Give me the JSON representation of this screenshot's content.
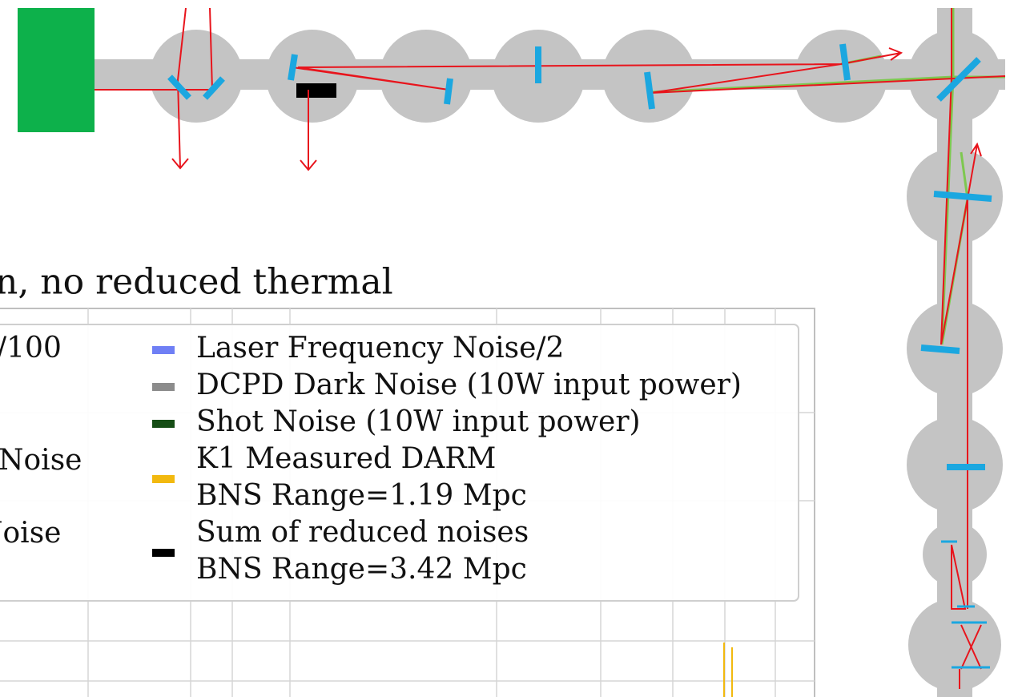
{
  "plot": {
    "title": "n, no reduced thermal",
    "left_legend": [
      "/100",
      "Noise",
      "Noise"
    ],
    "legend": [
      {
        "lines": [
          "Laser Frequency Noise/2"
        ],
        "color": "#6f7ff5"
      },
      {
        "lines": [
          "DCPD Dark Noise (10W input power)"
        ],
        "color": "#8c8c8c"
      },
      {
        "lines": [
          "Shot Noise (10W input power)"
        ],
        "color": "#154d15"
      },
      {
        "lines": [
          "K1 Measured DARM",
          "BNS Range=1.19 Mpc"
        ],
        "color": "#f2b90f"
      },
      {
        "lines": [
          "Sum of reduced noises",
          "BNS Range=3.42 Mpc"
        ],
        "color": "#000000"
      }
    ]
  }
}
